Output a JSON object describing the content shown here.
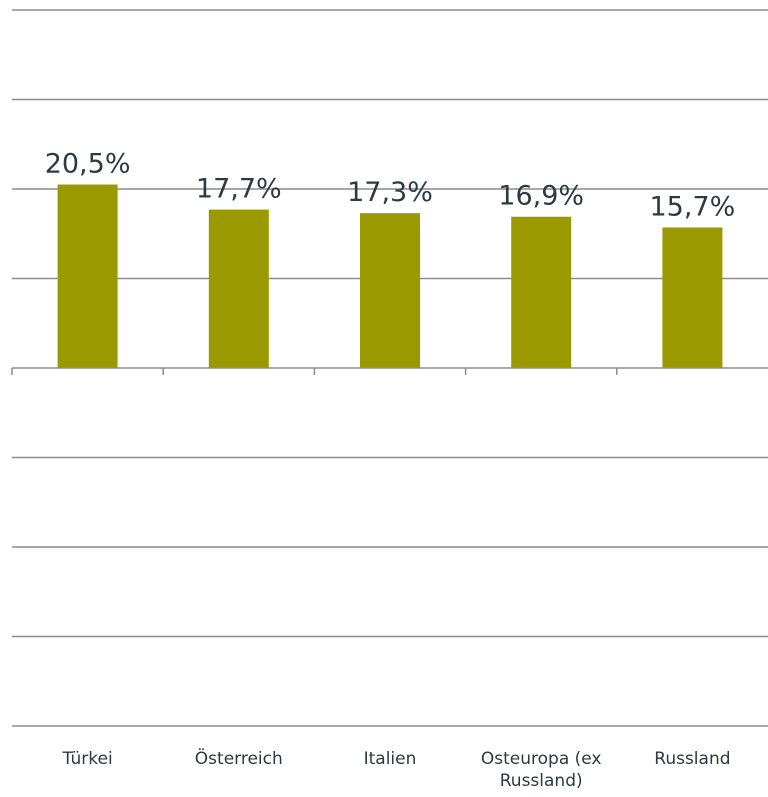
{
  "chart_data": {
    "type": "bar",
    "categories": [
      "Türkei",
      "Österreich",
      "Italien",
      "Osteuropa (ex Russland)",
      "Russland"
    ],
    "category_lines": [
      [
        "Türkei"
      ],
      [
        "Österreich"
      ],
      [
        "Italien"
      ],
      [
        "Osteuropa (ex",
        "Russland)"
      ],
      [
        "Russland"
      ]
    ],
    "values": [
      20.5,
      17.7,
      17.3,
      16.9,
      15.7
    ],
    "data_labels": [
      "20,5%",
      "17,7%",
      "17,3%",
      "16,9%",
      "15,7%"
    ],
    "ylim": [
      -40,
      40
    ],
    "grid_step": 10,
    "grid": true,
    "legend": "none",
    "bar_color": "#9a9a00"
  }
}
